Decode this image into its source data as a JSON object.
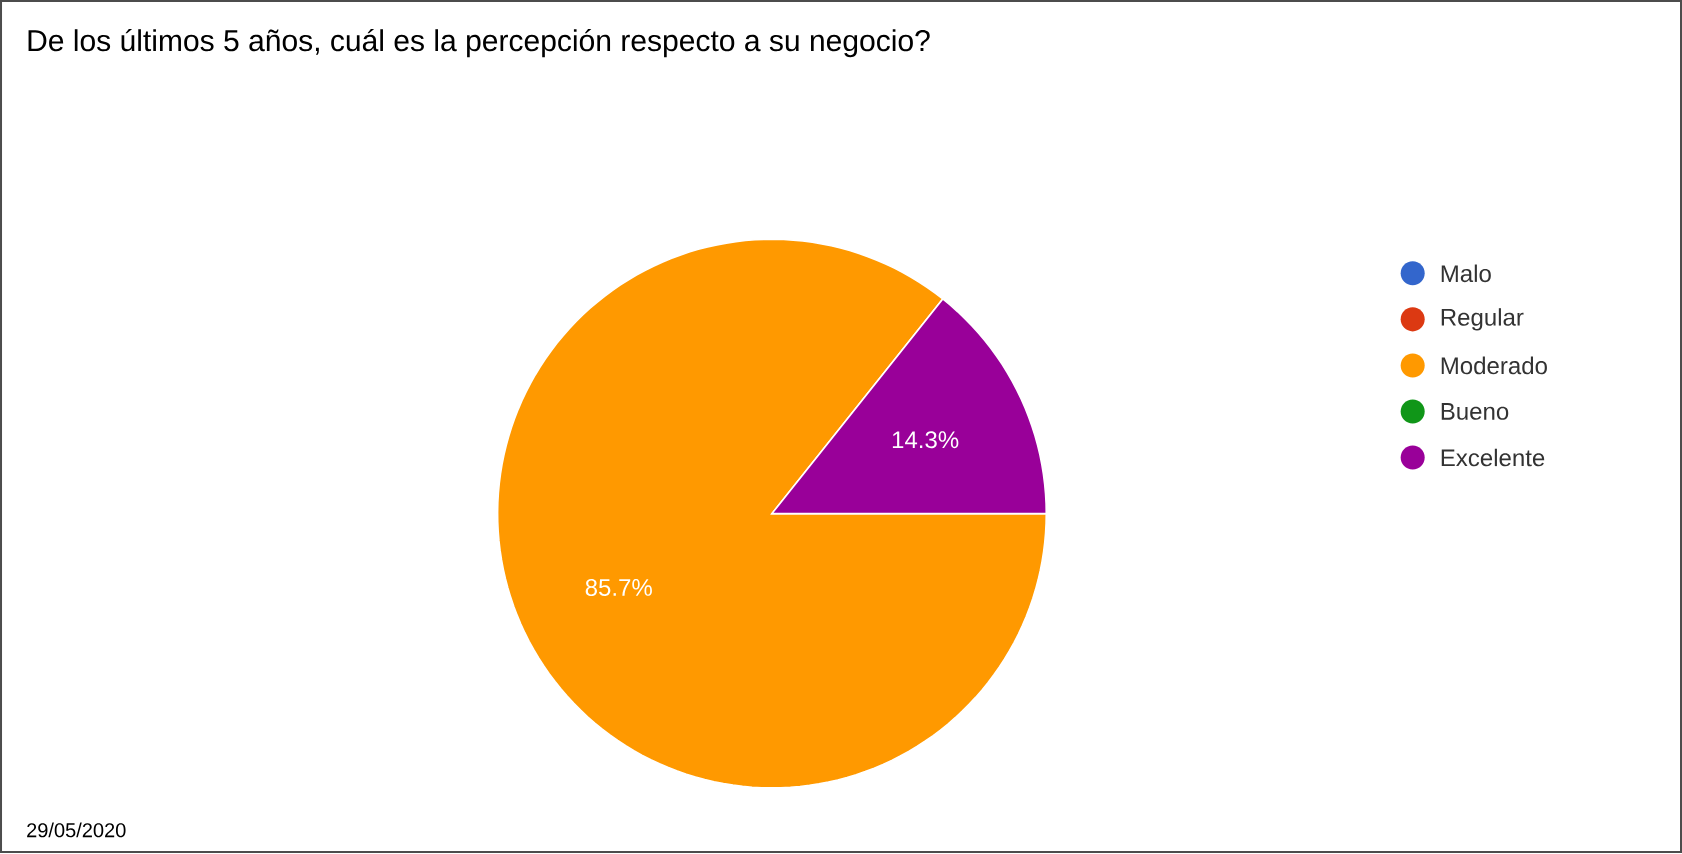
{
  "chart_data": {
    "type": "pie",
    "title": "De los últimos 5 años, cuál es la percepción respecto a su negocio?",
    "categories": [
      "Malo",
      "Regular",
      "Moderado",
      "Bueno",
      "Excelente"
    ],
    "values": [
      0,
      0,
      85.7,
      0,
      14.3
    ],
    "colors": [
      "#3366cc",
      "#dc3912",
      "#ff9900",
      "#109618",
      "#990099"
    ],
    "value_labels": [
      null,
      null,
      "85.7%",
      null,
      "14.3%"
    ],
    "legend": "right",
    "annotations": [
      "29/05/2020"
    ]
  }
}
